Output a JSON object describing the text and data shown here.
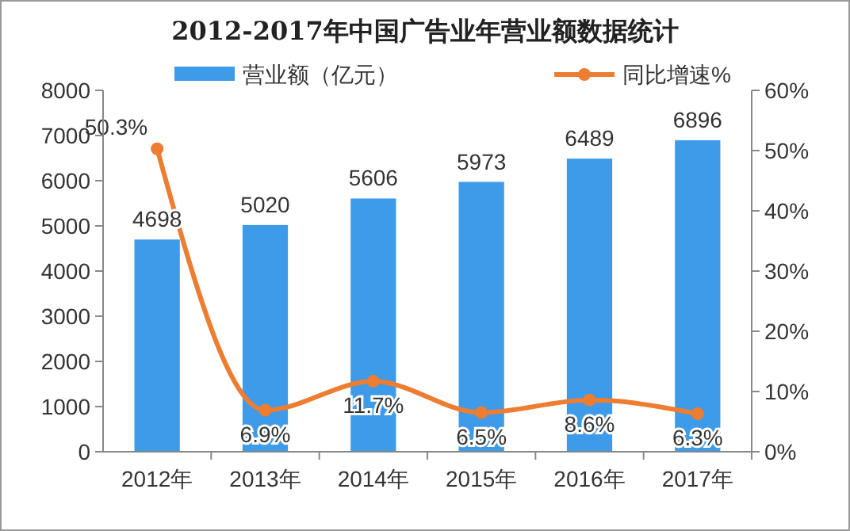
{
  "chart_data": {
    "type": "bar",
    "title": "2012-2017年中国广告业年营业额数据统计",
    "categories": [
      "2012年",
      "2013年",
      "2014年",
      "2015年",
      "2016年",
      "2017年"
    ],
    "series": [
      {
        "name": "营业额（亿元）",
        "color": "#3d9be9",
        "values": [
          4698,
          5020,
          5606,
          5973,
          6489,
          6896
        ],
        "value_labels": [
          "4698",
          "5020",
          "5606",
          "5973",
          "6489",
          "6896"
        ]
      },
      {
        "name": "同比增速%",
        "type": "line",
        "axis": "y2",
        "color": "#ed7d31",
        "values": [
          50.3,
          6.9,
          11.7,
          6.5,
          8.6,
          6.3
        ],
        "value_labels": [
          "50.3%",
          "6.9%",
          "11.7%",
          "6.5%",
          "8.6%",
          "6.3%"
        ]
      }
    ],
    "ylim": [
      0,
      8000
    ],
    "yticks": [
      0,
      1000,
      2000,
      3000,
      4000,
      5000,
      6000,
      7000,
      8000
    ],
    "y2lim": [
      0,
      60
    ],
    "y2ticks": [
      {
        "value": 0,
        "label": "0%"
      },
      {
        "value": 10,
        "label": "10%"
      },
      {
        "value": 20,
        "label": "20%"
      },
      {
        "value": 30,
        "label": "30%"
      },
      {
        "value": 40,
        "label": "40%"
      },
      {
        "value": 50,
        "label": "50%"
      },
      {
        "value": 60,
        "label": "60%"
      }
    ],
    "legend": "top",
    "grid": false,
    "marker": "circle",
    "line_style": "solid"
  }
}
